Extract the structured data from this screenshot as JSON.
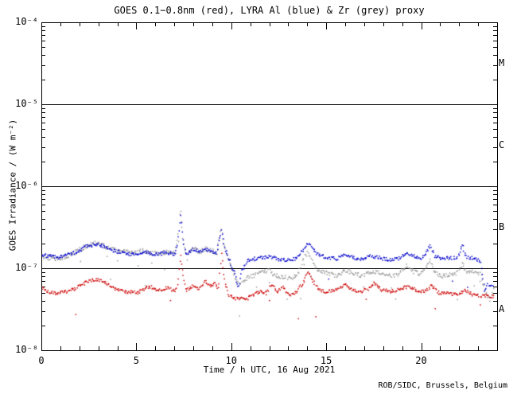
{
  "chart_data": {
    "type": "scatter",
    "title": "GOES 0.1−0.8nm (red), LYRA Al (blue) & Zr (grey) proxy",
    "xlabel": "Time / h UTC, 16 Aug 2021",
    "ylabel": "GOES Irradiance / (W m⁻²)",
    "credit": "ROB/SIDC, Brussels, Belgium",
    "xlim": [
      0,
      24
    ],
    "x_major_ticks": [
      0,
      5,
      10,
      15,
      20
    ],
    "x_minor_step": 1,
    "y_scale": "log",
    "ylim": [
      1e-08,
      0.0001
    ],
    "y_tick_exponents": [
      -4,
      -5,
      -6,
      -7,
      -8
    ],
    "y_tick_labels": [
      "10⁻⁴",
      "10⁻⁵",
      "10⁻⁶",
      "10⁻⁷",
      "10⁻⁸"
    ],
    "hline_levels": [
      1e-05,
      1e-06,
      1e-07
    ],
    "flare_class_labels": [
      "M",
      "C",
      "B",
      "A"
    ],
    "grid": "off",
    "legend": "in-title",
    "series": [
      {
        "name": "GOES 0.1-0.8nm",
        "color": "#cc0000",
        "points": [
          [
            0,
            5.8e-08
          ],
          [
            0.3,
            5.3e-08
          ],
          [
            0.7,
            5e-08
          ],
          [
            1.2,
            5.2e-08
          ],
          [
            1.6,
            5.6e-08
          ],
          [
            2.0,
            6.2e-08
          ],
          [
            2.5,
            7.2e-08
          ],
          [
            2.9,
            7.4e-08
          ],
          [
            3.3,
            6.8e-08
          ],
          [
            3.8,
            5.8e-08
          ],
          [
            4.3,
            5.3e-08
          ],
          [
            5.0,
            5.1e-08
          ],
          [
            5.4,
            5.7e-08
          ],
          [
            5.7,
            6.1e-08
          ],
          [
            6.0,
            5.4e-08
          ],
          [
            6.4,
            5.7e-08
          ],
          [
            6.7,
            5.9e-08
          ],
          [
            7.0,
            5.3e-08
          ],
          [
            7.15,
            6.5e-08
          ],
          [
            7.3,
            1.5e-07
          ],
          [
            7.45,
            7.5e-08
          ],
          [
            7.6,
            5.5e-08
          ],
          [
            8.0,
            6.3e-08
          ],
          [
            8.3,
            5.7e-08
          ],
          [
            8.6,
            7e-08
          ],
          [
            8.85,
            6.2e-08
          ],
          [
            9.1,
            6.6e-08
          ],
          [
            9.3,
            5.8e-08
          ],
          [
            9.45,
            1.55e-07
          ],
          [
            9.6,
            7.5e-08
          ],
          [
            9.85,
            4.8e-08
          ],
          [
            10.2,
            4.3e-08
          ],
          [
            10.8,
            4.3e-08
          ],
          [
            11.2,
            5e-08
          ],
          [
            11.5,
            5.4e-08
          ],
          [
            11.8,
            5e-08
          ],
          [
            12.1,
            6.4e-08
          ],
          [
            12.4,
            5.3e-08
          ],
          [
            12.7,
            6.2e-08
          ],
          [
            13.0,
            4.7e-08
          ],
          [
            13.4,
            5.3e-08
          ],
          [
            13.8,
            7e-08
          ],
          [
            14.0,
            9.5e-08
          ],
          [
            14.25,
            7.2e-08
          ],
          [
            14.6,
            5.5e-08
          ],
          [
            15.0,
            5.2e-08
          ],
          [
            15.5,
            5.6e-08
          ],
          [
            16.0,
            6.4e-08
          ],
          [
            16.4,
            5.4e-08
          ],
          [
            16.8,
            5.3e-08
          ],
          [
            17.2,
            5.7e-08
          ],
          [
            17.5,
            6.8e-08
          ],
          [
            17.9,
            5.5e-08
          ],
          [
            18.4,
            5.3e-08
          ],
          [
            18.9,
            5.7e-08
          ],
          [
            19.3,
            6.1e-08
          ],
          [
            19.8,
            5.4e-08
          ],
          [
            20.2,
            5.3e-08
          ],
          [
            20.5,
            6.2e-08
          ],
          [
            20.9,
            5.1e-08
          ],
          [
            21.4,
            5e-08
          ],
          [
            21.9,
            4.9e-08
          ],
          [
            22.3,
            5.5e-08
          ],
          [
            22.7,
            4.8e-08
          ],
          [
            23.1,
            4.7e-08
          ],
          [
            23.5,
            4.7e-08
          ],
          [
            23.8,
            4.5e-08
          ]
        ]
      },
      {
        "name": "LYRA Al proxy",
        "color": "#0000cc",
        "points": [
          [
            0,
            1.5e-07
          ],
          [
            0.4,
            1.42e-07
          ],
          [
            0.9,
            1.38e-07
          ],
          [
            1.4,
            1.48e-07
          ],
          [
            1.9,
            1.65e-07
          ],
          [
            2.4,
            1.9e-07
          ],
          [
            2.8,
            2e-07
          ],
          [
            3.2,
            1.9e-07
          ],
          [
            3.7,
            1.68e-07
          ],
          [
            4.2,
            1.58e-07
          ],
          [
            4.8,
            1.5e-07
          ],
          [
            5.3,
            1.62e-07
          ],
          [
            5.7,
            1.55e-07
          ],
          [
            6.1,
            1.5e-07
          ],
          [
            6.5,
            1.57e-07
          ],
          [
            7.0,
            1.5e-07
          ],
          [
            7.15,
            2e-07
          ],
          [
            7.3,
            4.6e-07
          ],
          [
            7.45,
            2e-07
          ],
          [
            7.6,
            1.52e-07
          ],
          [
            8.0,
            1.75e-07
          ],
          [
            8.3,
            1.57e-07
          ],
          [
            8.6,
            1.72e-07
          ],
          [
            8.9,
            1.65e-07
          ],
          [
            9.2,
            1.55e-07
          ],
          [
            9.45,
            2.9e-07
          ],
          [
            9.6,
            1.85e-07
          ],
          [
            9.9,
            1.25e-07
          ],
          [
            10.2,
            8e-08
          ],
          [
            10.35,
            5.8e-08
          ],
          [
            10.55,
            9.5e-08
          ],
          [
            10.8,
            1.25e-07
          ],
          [
            11.2,
            1.32e-07
          ],
          [
            11.7,
            1.38e-07
          ],
          [
            12.1,
            1.4e-07
          ],
          [
            12.5,
            1.3e-07
          ],
          [
            13.0,
            1.27e-07
          ],
          [
            13.5,
            1.38e-07
          ],
          [
            13.8,
            1.8e-07
          ],
          [
            14.0,
            2.1e-07
          ],
          [
            14.2,
            1.85e-07
          ],
          [
            14.5,
            1.5e-07
          ],
          [
            15.0,
            1.37e-07
          ],
          [
            15.5,
            1.32e-07
          ],
          [
            16.0,
            1.5e-07
          ],
          [
            16.4,
            1.36e-07
          ],
          [
            16.9,
            1.3e-07
          ],
          [
            17.4,
            1.45e-07
          ],
          [
            17.8,
            1.35e-07
          ],
          [
            18.3,
            1.3e-07
          ],
          [
            18.8,
            1.34e-07
          ],
          [
            19.2,
            1.58e-07
          ],
          [
            19.6,
            1.42e-07
          ],
          [
            20.0,
            1.36e-07
          ],
          [
            20.45,
            1.9e-07
          ],
          [
            20.65,
            1.45e-07
          ],
          [
            21.0,
            1.32e-07
          ],
          [
            21.5,
            1.35e-07
          ],
          [
            21.9,
            1.4e-07
          ],
          [
            22.15,
            1.9e-07
          ],
          [
            22.35,
            1.42e-07
          ],
          [
            22.8,
            1.32e-07
          ],
          [
            23.1,
            1.25e-07
          ],
          [
            23.3,
            5.5e-08
          ],
          [
            23.5,
            6.5e-08
          ],
          [
            23.75,
            6.2e-08
          ]
        ]
      },
      {
        "name": "LYRA Zr proxy",
        "color": "#999999",
        "points": [
          [
            0,
            1.42e-07
          ],
          [
            0.4,
            1.35e-07
          ],
          [
            0.9,
            1.32e-07
          ],
          [
            1.4,
            1.44e-07
          ],
          [
            1.9,
            1.68e-07
          ],
          [
            2.4,
            1.95e-07
          ],
          [
            2.8,
            2.05e-07
          ],
          [
            3.2,
            1.95e-07
          ],
          [
            3.7,
            1.72e-07
          ],
          [
            4.2,
            1.62e-07
          ],
          [
            4.8,
            1.55e-07
          ],
          [
            5.3,
            1.66e-07
          ],
          [
            5.7,
            1.58e-07
          ],
          [
            6.1,
            1.54e-07
          ],
          [
            6.5,
            1.6e-07
          ],
          [
            7.0,
            1.55e-07
          ],
          [
            7.15,
            2.3e-07
          ],
          [
            7.3,
            5.3e-07
          ],
          [
            7.45,
            2.2e-07
          ],
          [
            7.6,
            1.56e-07
          ],
          [
            8.0,
            1.8e-07
          ],
          [
            8.3,
            1.6e-07
          ],
          [
            8.6,
            1.76e-07
          ],
          [
            8.9,
            1.7e-07
          ],
          [
            9.2,
            1.58e-07
          ],
          [
            9.45,
            3e-07
          ],
          [
            9.6,
            1.9e-07
          ],
          [
            9.9,
            1.15e-07
          ],
          [
            10.2,
            7.5e-08
          ],
          [
            10.4,
            6.2e-08
          ],
          [
            10.7,
            7.5e-08
          ],
          [
            11.1,
            8.2e-08
          ],
          [
            11.5,
            8.8e-08
          ],
          [
            11.9,
            9.6e-08
          ],
          [
            12.3,
            8.4e-08
          ],
          [
            12.7,
            8e-08
          ],
          [
            13.1,
            7.6e-08
          ],
          [
            13.5,
            8.8e-08
          ],
          [
            13.8,
            1.35e-07
          ],
          [
            14.0,
            1.55e-07
          ],
          [
            14.2,
            1.3e-07
          ],
          [
            14.5,
            9.8e-08
          ],
          [
            15.0,
            8.8e-08
          ],
          [
            15.5,
            8.2e-08
          ],
          [
            16.0,
            9.6e-08
          ],
          [
            16.4,
            8.8e-08
          ],
          [
            16.9,
            8.2e-08
          ],
          [
            17.4,
            9.5e-08
          ],
          [
            17.8,
            8.8e-08
          ],
          [
            18.3,
            8.2e-08
          ],
          [
            18.8,
            8.6e-08
          ],
          [
            19.2,
            1.1e-07
          ],
          [
            19.6,
            9.2e-08
          ],
          [
            20.0,
            8.7e-08
          ],
          [
            20.45,
            1.25e-07
          ],
          [
            20.65,
            9.3e-08
          ],
          [
            21.0,
            8.2e-08
          ],
          [
            21.5,
            8.6e-08
          ],
          [
            21.9,
            9e-08
          ],
          [
            22.15,
            1.15e-07
          ],
          [
            22.35,
            9.2e-08
          ],
          [
            22.8,
            9.5e-08
          ],
          [
            23.1,
            8.8e-08
          ],
          [
            23.35,
            5e-08
          ],
          [
            23.6,
            4.2e-08
          ],
          [
            23.8,
            5.8e-08
          ]
        ]
      }
    ]
  },
  "colors": {
    "frame": "#000000",
    "background": "#ffffff",
    "goes_red": "#cc0000",
    "lyra_al_blue": "#0000cc",
    "lyra_zr_grey": "#999999"
  }
}
